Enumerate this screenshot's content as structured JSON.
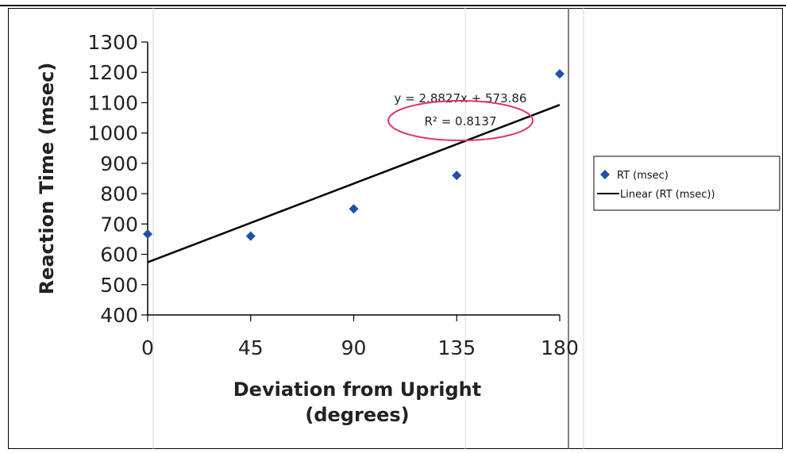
{
  "chart_data": {
    "type": "scatter",
    "title": "",
    "xlabel": "Deviation from Upright",
    "xlabel_line2": "(degrees)",
    "ylabel": "Reaction Time (msec)",
    "xlim": [
      0,
      180
    ],
    "ylim": [
      400,
      1300
    ],
    "x_ticks": [
      0,
      45,
      90,
      135,
      180
    ],
    "x_tick_labels": [
      "0",
      "45",
      "90",
      "135",
      "180"
    ],
    "y_ticks": [
      400,
      500,
      600,
      700,
      800,
      900,
      1000,
      1100,
      1200,
      1300
    ],
    "y_tick_labels": [
      "400",
      "500",
      "600",
      "700",
      "800",
      "900",
      "1000",
      "1100",
      "1200",
      "1300"
    ],
    "grid": false,
    "series": [
      {
        "name": "RT (msec)",
        "marker": "diamond",
        "color": "#1f4fa8",
        "points": [
          {
            "x": 0,
            "y": 667
          },
          {
            "x": 45,
            "y": 660
          },
          {
            "x": 90,
            "y": 750
          },
          {
            "x": 135,
            "y": 860
          },
          {
            "x": 180,
            "y": 1195
          }
        ]
      },
      {
        "name": "Linear (RT (msec))",
        "kind": "trendline",
        "color": "#000000",
        "slope": 2.8827,
        "intercept": 573.86
      }
    ],
    "annotations": {
      "equation": "y = 2.8827x + 573.86",
      "r_squared": "R² = 0.8137",
      "highlight_color": "#e0306a"
    },
    "legend": {
      "position": "right",
      "entries": [
        "RT (msec)",
        "Linear (RT (msec))"
      ]
    }
  }
}
